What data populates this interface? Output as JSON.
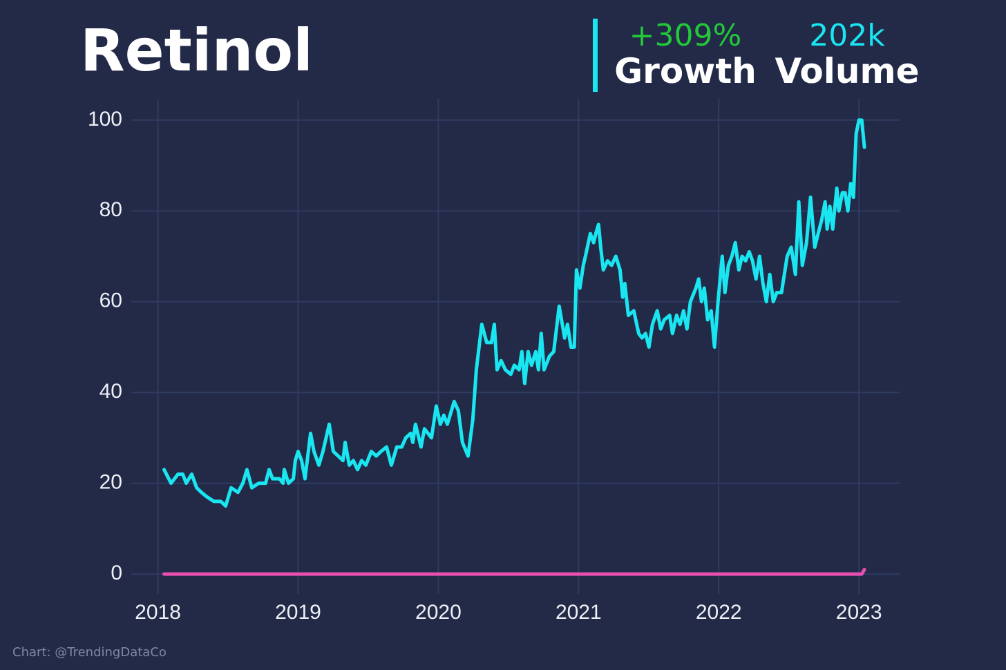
{
  "chart_data": {
    "type": "line",
    "title": "Retinol",
    "stats": [
      {
        "value": "+309%",
        "label": "Growth",
        "color": "#22c83a"
      },
      {
        "value": "202k",
        "label": "Volume",
        "color": "#19e6f0"
      }
    ],
    "credit": "Chart: @TrendingDataCo",
    "xlim": [
      2017.81,
      2023.29
    ],
    "xticks": [
      2018,
      2019,
      2020,
      2021,
      2022,
      2023
    ],
    "ylim": [
      -4.4,
      104.7
    ],
    "yticks": [
      0,
      20,
      40,
      60,
      80,
      100
    ],
    "grid": true,
    "x": [
      2018.044,
      2018.094,
      2018.143,
      2018.177,
      2018.202,
      2018.241,
      2018.276,
      2018.31,
      2018.35,
      2018.399,
      2018.448,
      2018.483,
      2018.522,
      2018.571,
      2018.606,
      2018.635,
      2018.67,
      2018.719,
      2018.768,
      2018.793,
      2018.818,
      2018.867,
      2018.892,
      2018.901,
      2018.931,
      2018.966,
      2018.98,
      2019.0,
      2019.025,
      2019.049,
      2019.089,
      2019.113,
      2019.148,
      2019.177,
      2019.222,
      2019.251,
      2019.286,
      2019.32,
      2019.335,
      2019.365,
      2019.394,
      2019.424,
      2019.453,
      2019.483,
      2019.522,
      2019.557,
      2019.591,
      2019.631,
      2019.665,
      2019.704,
      2019.739,
      2019.768,
      2019.803,
      2019.818,
      2019.837,
      2019.877,
      2019.901,
      2019.951,
      2019.985,
      2020.015,
      2020.039,
      2020.064,
      2020.084,
      2020.113,
      2020.143,
      2020.172,
      2020.212,
      2020.246,
      2020.271,
      2020.31,
      2020.345,
      2020.379,
      2020.399,
      2020.419,
      2020.448,
      2020.478,
      2020.517,
      2020.542,
      2020.576,
      2020.596,
      2020.616,
      2020.64,
      2020.665,
      2020.695,
      2020.714,
      2020.734,
      2020.754,
      2020.793,
      2020.823,
      2020.862,
      2020.901,
      2020.921,
      2020.946,
      2020.97,
      2020.985,
      2021.01,
      2021.034,
      2021.049,
      2021.084,
      2021.108,
      2021.123,
      2021.143,
      2021.158,
      2021.177,
      2021.207,
      2021.236,
      2021.266,
      2021.296,
      2021.315,
      2021.33,
      2021.355,
      2021.394,
      2021.429,
      2021.453,
      2021.478,
      2021.502,
      2021.527,
      2021.561,
      2021.586,
      2021.611,
      2021.65,
      2021.67,
      2021.699,
      2021.724,
      2021.749,
      2021.773,
      2021.798,
      2021.837,
      2021.857,
      2021.877,
      2021.897,
      2021.921,
      2021.946,
      2021.97,
      2021.995,
      2022.025,
      2022.044,
      2022.069,
      2022.094,
      2022.118,
      2022.143,
      2022.167,
      2022.192,
      2022.217,
      2022.241,
      2022.266,
      2022.291,
      2022.315,
      2022.34,
      2022.364,
      2022.389,
      2022.414,
      2022.448,
      2022.488,
      2022.517,
      2022.547,
      2022.571,
      2022.596,
      2022.626,
      2022.655,
      2022.685,
      2022.709,
      2022.734,
      2022.759,
      2022.773,
      2022.793,
      2022.813,
      2022.842,
      2022.857,
      2022.882,
      2022.901,
      2022.921,
      2022.941,
      2022.961,
      2022.98,
      2023.0,
      2023.02,
      2023.039
    ],
    "series": [
      {
        "color": "#19e6f0",
        "values": [
          23,
          20,
          22,
          22,
          20,
          22,
          19,
          18,
          17,
          16,
          16,
          15,
          19,
          18,
          20,
          23,
          19,
          20,
          20,
          23,
          21,
          21,
          20,
          23,
          20,
          21,
          25,
          27,
          25,
          21,
          31,
          27,
          24,
          27,
          33,
          27,
          26,
          25,
          29,
          24,
          25,
          23,
          25,
          24,
          27,
          26,
          27,
          28,
          24,
          28,
          28,
          30,
          31,
          29,
          33,
          28,
          32,
          30,
          37,
          33,
          35,
          33,
          35,
          38,
          36,
          29,
          26,
          34,
          45,
          55,
          51,
          51,
          55,
          45,
          47,
          45,
          44,
          46,
          45,
          49,
          42,
          49,
          46,
          49,
          45,
          53,
          45,
          48,
          49,
          59,
          52,
          55,
          50,
          50,
          67,
          63,
          68,
          70,
          75,
          73,
          75,
          77,
          72,
          67,
          69,
          68,
          70,
          67,
          61,
          64,
          57,
          58,
          53,
          52,
          53,
          50,
          55,
          58,
          54,
          56,
          57,
          53,
          57,
          55,
          58,
          54,
          60,
          63,
          65,
          60,
          63,
          56,
          58,
          50,
          60,
          70,
          62,
          68,
          70,
          73,
          67,
          70,
          69,
          71,
          69,
          65,
          70,
          64,
          60,
          66,
          60,
          62,
          62,
          70,
          72,
          66,
          82,
          68,
          73,
          83,
          72,
          75,
          78,
          82,
          76,
          81,
          76,
          85,
          80,
          84,
          84,
          80,
          86,
          83,
          97,
          100,
          100,
          94
        ]
      },
      {
        "color": "#e84fb0",
        "values": [
          0,
          0,
          0,
          0,
          0,
          0,
          0,
          0,
          0,
          0,
          0,
          0,
          0,
          0,
          0,
          0,
          0,
          0,
          0,
          0,
          0,
          0,
          0,
          0,
          0,
          0,
          0,
          0,
          0,
          0,
          0,
          0,
          0,
          0,
          0,
          0,
          0,
          0,
          0,
          0,
          0,
          0,
          0,
          0,
          0,
          0,
          0,
          0,
          0,
          0,
          0,
          0,
          0,
          0,
          0,
          0,
          0,
          0,
          0,
          0,
          0,
          0,
          0,
          0,
          0,
          0,
          0,
          0,
          0,
          0,
          0,
          0,
          0,
          0,
          0,
          0,
          0,
          0,
          0,
          0,
          0,
          0,
          0,
          0,
          0,
          0,
          0,
          0,
          0,
          0,
          0,
          0,
          0,
          0,
          0,
          0,
          0,
          0,
          0,
          0,
          0,
          0,
          0,
          0,
          0,
          0,
          0,
          0,
          0,
          0,
          0,
          0,
          0,
          0,
          0,
          0,
          0,
          0,
          0,
          0,
          0,
          0,
          0,
          0,
          0,
          0,
          0,
          0,
          0,
          0,
          0,
          0,
          0,
          0,
          0,
          0,
          0,
          0,
          0,
          0,
          0,
          0,
          0,
          0,
          0,
          0,
          0,
          0,
          0,
          0,
          0,
          0,
          0,
          0,
          0,
          0,
          0,
          0,
          0,
          0,
          0,
          0,
          0,
          0,
          0,
          0,
          0,
          0,
          0,
          0,
          0,
          0,
          0,
          0,
          0,
          0,
          0,
          1
        ]
      }
    ]
  }
}
